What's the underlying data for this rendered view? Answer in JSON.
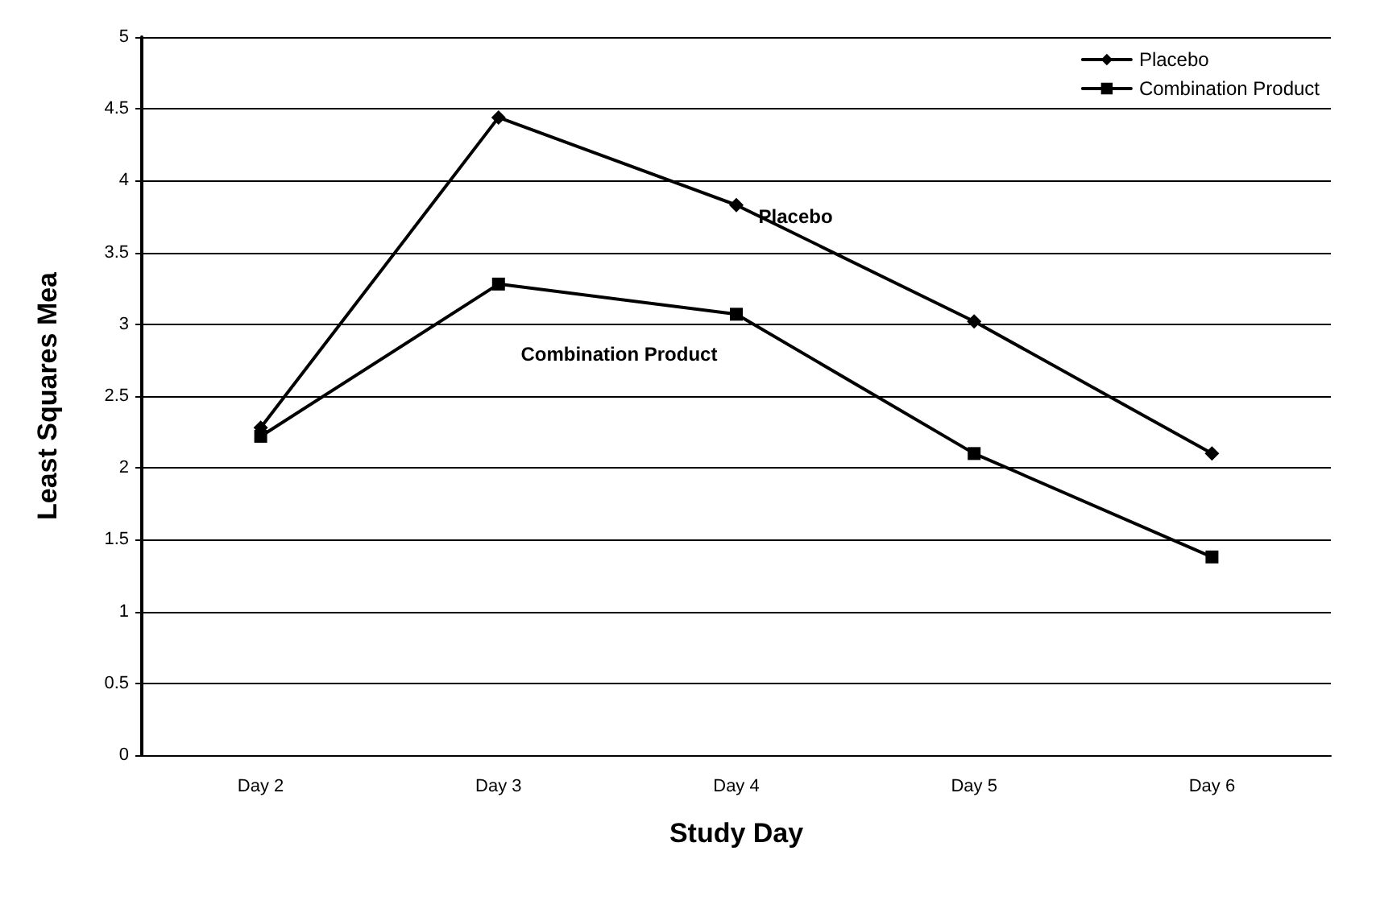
{
  "chart_data": {
    "type": "line",
    "xlabel": "Study Day",
    "ylabel": "Least Squares Mea",
    "categories": [
      "Day 2",
      "Day 3",
      "Day 4",
      "Day 5",
      "Day 6"
    ],
    "series": [
      {
        "name": "Placebo",
        "color": "#000000",
        "marker": "diamond",
        "values": [
          2.28,
          4.44,
          3.83,
          3.02,
          2.1
        ]
      },
      {
        "name": "Combination Product",
        "color": "#000000",
        "marker": "square",
        "values": [
          2.22,
          3.28,
          3.07,
          2.1,
          1.38
        ]
      }
    ],
    "ylim": [
      0,
      5
    ],
    "yticks": [
      0,
      0.5,
      1,
      1.5,
      2,
      2.5,
      3,
      3.5,
      4,
      4.5,
      5
    ],
    "grid": "y",
    "legend": "top right",
    "line_style": "solid",
    "annotations": [
      "Placebo",
      "Combination Product"
    ]
  }
}
